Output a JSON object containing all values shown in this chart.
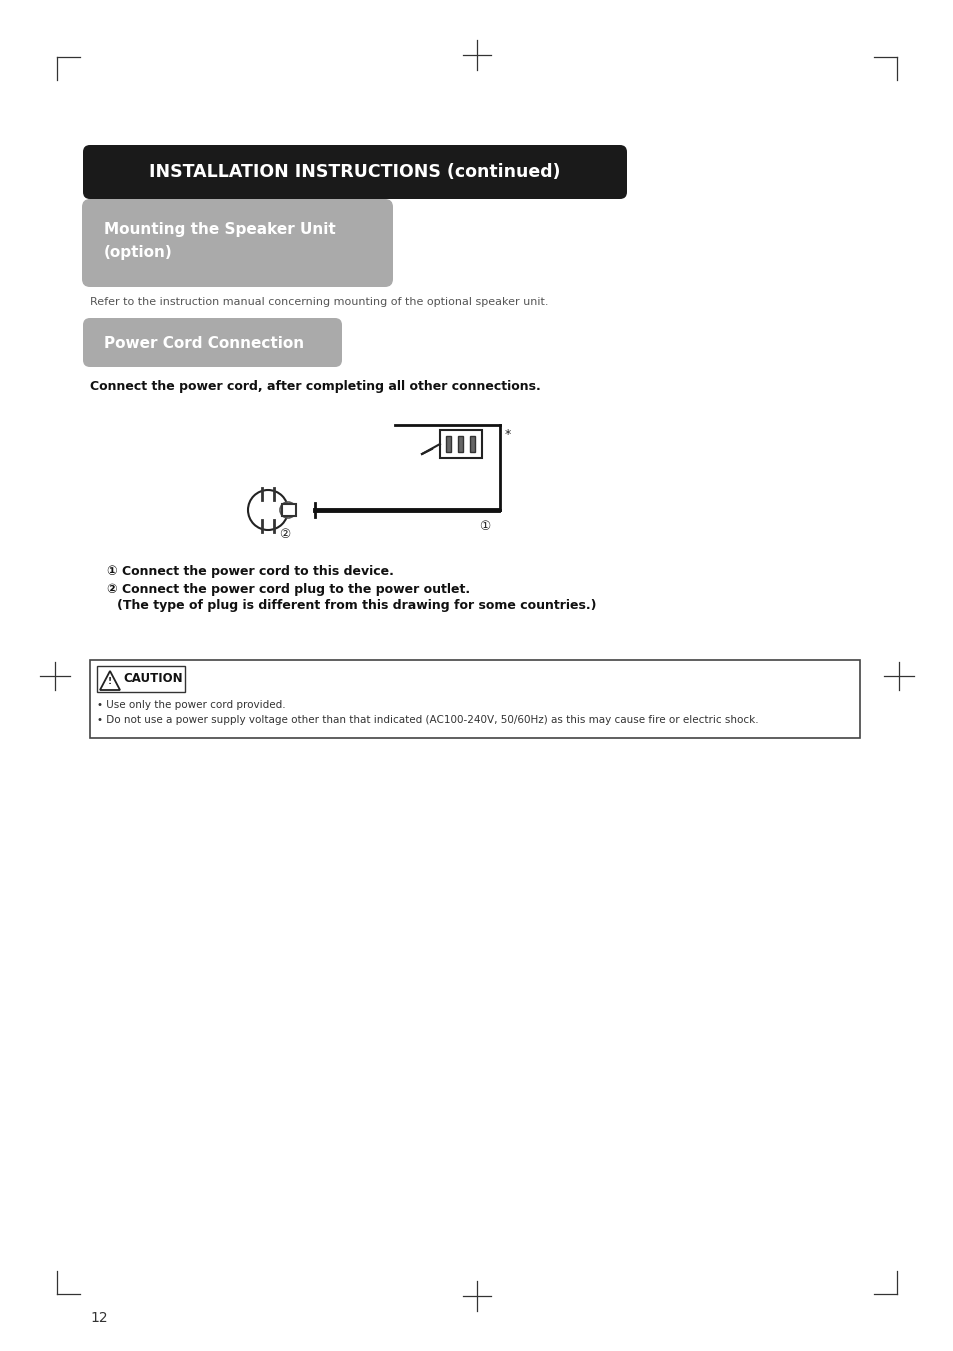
{
  "page_width": 9.54,
  "page_height": 13.51,
  "bg_color": "#ffffff",
  "title_box_color": "#1a1a1a",
  "title_box_text": "INSTALLATION INSTRUCTIONS (continued)",
  "title_box_text_color": "#ffffff",
  "section1_box_color": "#aaaaaa",
  "section1_title_line1": "Mounting the Speaker Unit",
  "section1_title_line2": "(option)",
  "section1_text_color": "#ffffff",
  "section1_body": "Refer to the instruction manual concerning mounting of the optional speaker unit.",
  "section2_box_color": "#aaaaaa",
  "section2_title": "Power Cord Connection",
  "section2_text_color": "#ffffff",
  "section2_bold": "Connect the power cord, after completing all other connections.",
  "inst1": "① Connect the power cord to this device.",
  "inst2": "② Connect the power cord plug to the power outlet.",
  "inst3": "    (The type of plug is different from this drawing for some countries.)",
  "caution_line1": "• Use only the power cord provided.",
  "caution_line2": "• Do not use a power supply voltage other than that indicated (AC100-240V, 50/60Hz) as this may cause fire or electric shock.",
  "page_number": "12",
  "corner_mark_color": "#333333"
}
